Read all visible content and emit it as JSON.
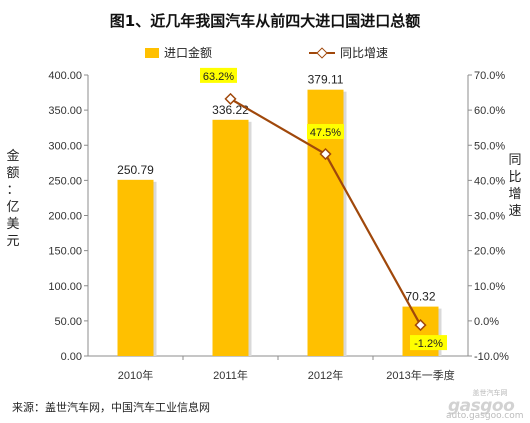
{
  "chart_data": {
    "type": "bar+line",
    "title": "图1、近几年我国汽车从前四大进口国进口总额",
    "categories": [
      "2010年",
      "2011年",
      "2012年",
      "2013年一季度"
    ],
    "series": [
      {
        "name": "进口金额",
        "type": "bar",
        "axis": "left",
        "values": [
          250.79,
          336.22,
          379.11,
          70.32
        ],
        "value_labels": [
          "250.79",
          "336.22",
          "379.11",
          "70.32"
        ],
        "color": "#FFC000"
      },
      {
        "name": "同比增速",
        "type": "line",
        "axis": "right",
        "values": [
          null,
          63.2,
          47.5,
          -1.2
        ],
        "value_labels": [
          "",
          "63.2%",
          "47.5%",
          "-1.2%"
        ],
        "color": "#A0480B",
        "label_highlight": "#FFFF00"
      }
    ],
    "y_left": {
      "label": "金额：亿美元",
      "range": [
        0,
        400
      ],
      "ticks": [
        "0.00",
        "50.00",
        "100.00",
        "150.00",
        "200.00",
        "250.00",
        "300.00",
        "350.00",
        "400.00"
      ]
    },
    "y_right": {
      "label": "同比增速",
      "range": [
        -10,
        70
      ],
      "ticks": [
        "-10.0%",
        "0.0%",
        "10.0%",
        "20.0%",
        "30.0%",
        "40.0%",
        "50.0%",
        "60.0%",
        "70.0%"
      ]
    },
    "legend_position": "top",
    "grid": false
  },
  "source": "来源：盖世汽车网，中国汽车工业信息网",
  "watermark": {
    "top": "盖世汽车网",
    "brand": "gasgoo",
    "url": "auto.gasgoo.com"
  }
}
